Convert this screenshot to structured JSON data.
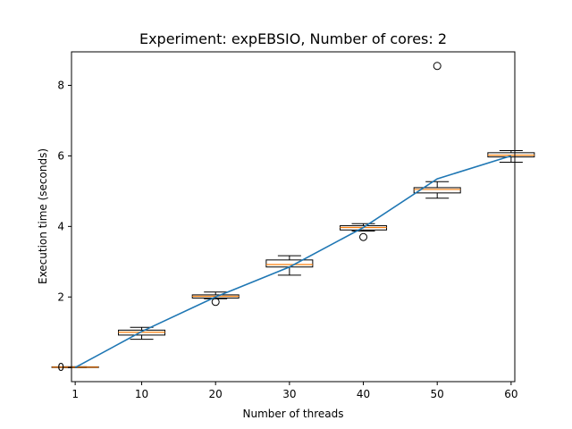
{
  "chart_data": {
    "type": "box",
    "title": "Experiment: expEBSIO, Number of cores: 2",
    "xlabel": "Number of threads",
    "ylabel": "Execution time (seconds)",
    "xlim": [
      0.5,
      60.5
    ],
    "ylim": [
      -0.4,
      8.95
    ],
    "xticks": [
      1,
      10,
      20,
      30,
      40,
      50,
      60
    ],
    "yticks": [
      0,
      2,
      4,
      6,
      8
    ],
    "grid": false,
    "colors": {
      "box": "#000000",
      "median": "#ff7f0e",
      "line": "#1f77b4",
      "flier": "#000000"
    },
    "boxes": [
      {
        "x": 1,
        "whislo": 0.0,
        "q1": 0.0,
        "med": 0.01,
        "q3": 0.02,
        "whishi": 0.02,
        "fliers": []
      },
      {
        "x": 10,
        "whislo": 0.8,
        "q1": 0.92,
        "med": 1.0,
        "q3": 1.06,
        "whishi": 1.14,
        "fliers": []
      },
      {
        "x": 20,
        "whislo": 1.95,
        "q1": 1.97,
        "med": 2.02,
        "q3": 2.06,
        "whishi": 2.14,
        "fliers": [
          1.86
        ]
      },
      {
        "x": 30,
        "whislo": 2.62,
        "q1": 2.85,
        "med": 2.92,
        "q3": 3.05,
        "whishi": 3.17,
        "fliers": []
      },
      {
        "x": 40,
        "whislo": 3.87,
        "q1": 3.9,
        "med": 3.97,
        "q3": 4.02,
        "whishi": 4.08,
        "fliers": [
          3.7
        ]
      },
      {
        "x": 50,
        "whislo": 4.8,
        "q1": 4.95,
        "med": 5.05,
        "q3": 5.1,
        "whishi": 5.27,
        "fliers": [
          8.55
        ]
      },
      {
        "x": 60,
        "whislo": 5.82,
        "q1": 5.97,
        "med": 6.02,
        "q3": 6.09,
        "whishi": 6.15,
        "fliers": []
      }
    ],
    "mean_line": {
      "x": [
        1,
        10,
        20,
        30,
        40,
        50,
        60
      ],
      "y": [
        0.0,
        1.02,
        2.0,
        2.85,
        3.97,
        5.35,
        6.0
      ]
    }
  }
}
